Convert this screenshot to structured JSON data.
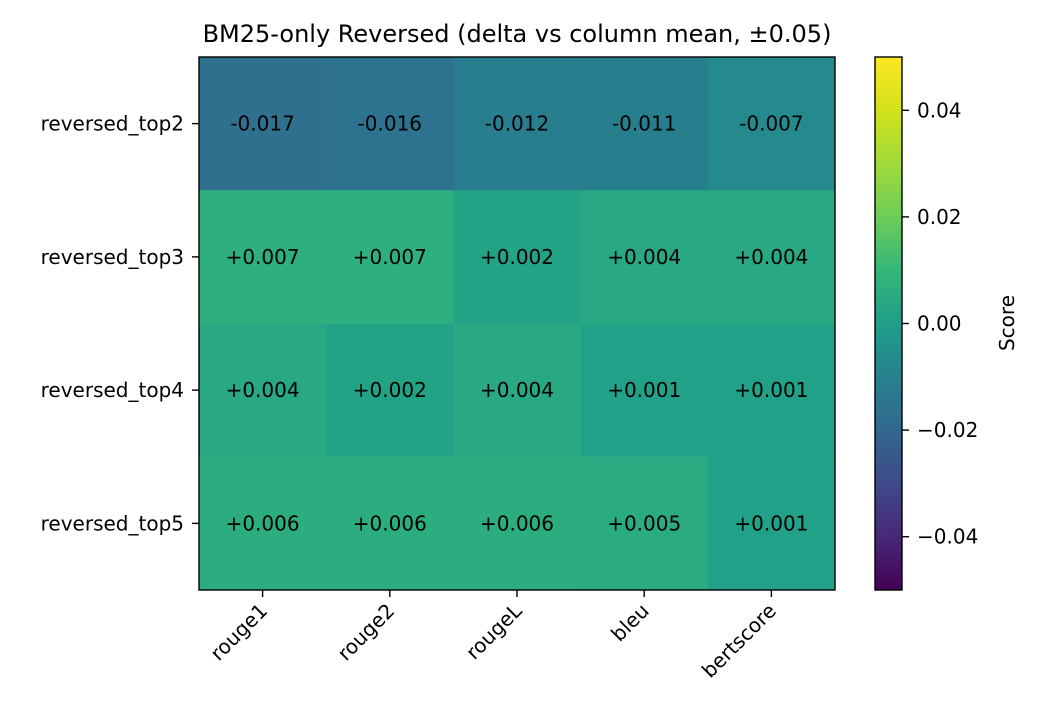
{
  "chart_data": {
    "type": "heatmap",
    "title": "BM25-only Reversed (delta vs column mean, ±0.05)",
    "xlabel": "",
    "ylabel": "",
    "columns": [
      "rouge1",
      "rouge2",
      "rougeL",
      "bleu",
      "bertscore"
    ],
    "rows": [
      "reversed_top2",
      "reversed_top3",
      "reversed_top4",
      "reversed_top5"
    ],
    "values": [
      [
        -0.017,
        -0.016,
        -0.012,
        -0.011,
        -0.007
      ],
      [
        0.007,
        0.007,
        0.002,
        0.004,
        0.004
      ],
      [
        0.004,
        0.002,
        0.004,
        0.001,
        0.001
      ],
      [
        0.006,
        0.006,
        0.006,
        0.005,
        0.001
      ]
    ],
    "cell_labels": [
      [
        "-0.017",
        "-0.016",
        "-0.012",
        "-0.011",
        "-0.007"
      ],
      [
        "+0.007",
        "+0.007",
        "+0.002",
        "+0.004",
        "+0.004"
      ],
      [
        "+0.004",
        "+0.002",
        "+0.004",
        "+0.001",
        "+0.001"
      ],
      [
        "+0.006",
        "+0.006",
        "+0.006",
        "+0.005",
        "+0.001"
      ]
    ],
    "colorbar": {
      "label": "Score",
      "range": [
        -0.05,
        0.05
      ],
      "ticks": [
        0.04,
        0.02,
        0.0,
        -0.02,
        -0.04
      ],
      "tick_labels": [
        "0.04",
        "0.02",
        "0.00",
        "−0.02",
        "−0.04"
      ],
      "colormap": "viridis"
    }
  }
}
